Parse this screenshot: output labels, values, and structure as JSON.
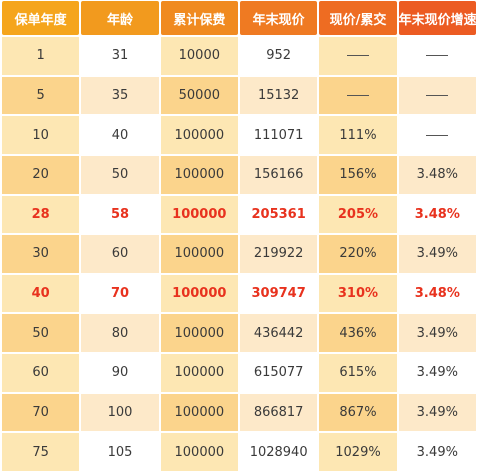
{
  "table": {
    "headers": [
      "保单年度",
      "年龄",
      "累计保费",
      "年末现价",
      "现价/累交",
      "年末现价增速"
    ],
    "rows": [
      {
        "cells": [
          "1",
          "31",
          "10000",
          "952",
          "——",
          "——"
        ],
        "highlight": false
      },
      {
        "cells": [
          "5",
          "35",
          "50000",
          "15132",
          "——",
          "——"
        ],
        "highlight": false
      },
      {
        "cells": [
          "10",
          "40",
          "100000",
          "111071",
          "111%",
          "——"
        ],
        "highlight": false
      },
      {
        "cells": [
          "20",
          "50",
          "100000",
          "156166",
          "156%",
          "3.48%"
        ],
        "highlight": false
      },
      {
        "cells": [
          "28",
          "58",
          "100000",
          "205361",
          "205%",
          "3.48%"
        ],
        "highlight": true
      },
      {
        "cells": [
          "30",
          "60",
          "100000",
          "219922",
          "220%",
          "3.49%"
        ],
        "highlight": false
      },
      {
        "cells": [
          "40",
          "70",
          "100000",
          "309747",
          "310%",
          "3.48%"
        ],
        "highlight": true
      },
      {
        "cells": [
          "50",
          "80",
          "100000",
          "436442",
          "436%",
          "3.49%"
        ],
        "highlight": false
      },
      {
        "cells": [
          "60",
          "90",
          "100000",
          "615077",
          "615%",
          "3.49%"
        ],
        "highlight": false
      },
      {
        "cells": [
          "70",
          "100",
          "100000",
          "866817",
          "867%",
          "3.49%"
        ],
        "highlight": false
      },
      {
        "cells": [
          "75",
          "105",
          "100000",
          "1028940",
          "1029%",
          "3.49%"
        ],
        "highlight": false
      }
    ]
  },
  "colors": {
    "header_start": "#f5a51c",
    "header_end": "#ec5b22",
    "highlight_text": "#e8321e",
    "row_dark": "#fbd48c",
    "row_light": "#fde7b3"
  }
}
